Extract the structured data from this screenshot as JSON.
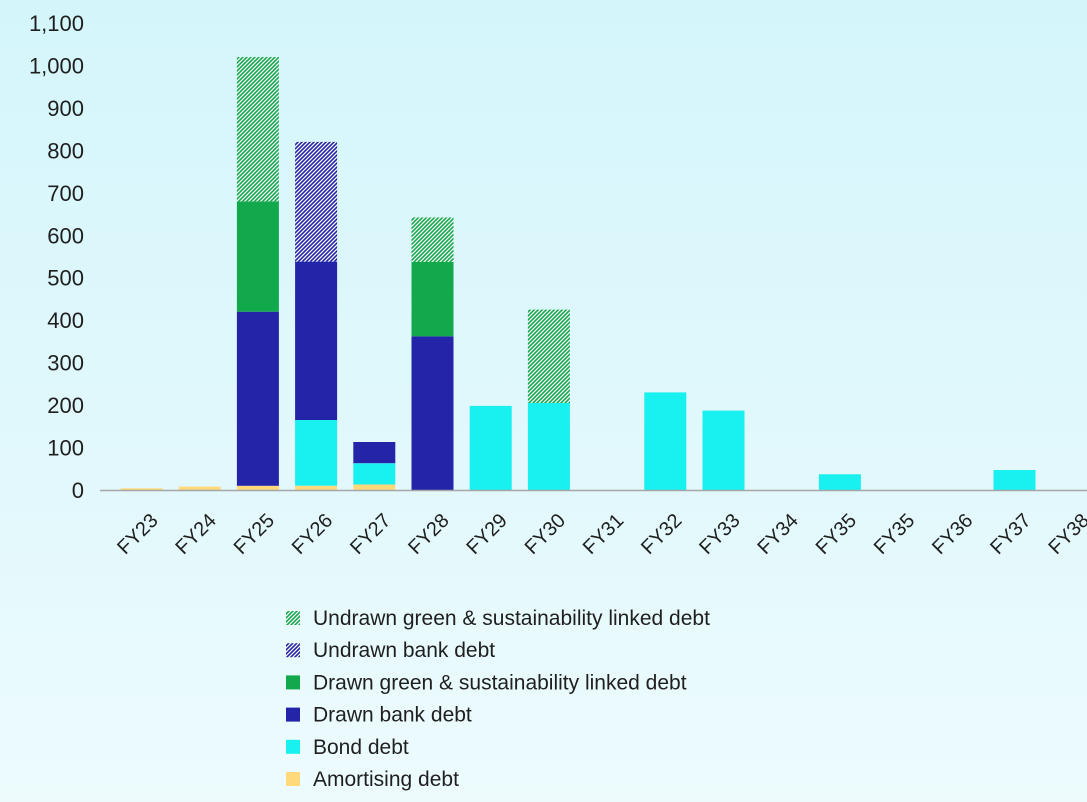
{
  "chart_data": {
    "type": "bar",
    "stacked": true,
    "categories": [
      "FY23",
      "FY24",
      "FY25",
      "FY26",
      "FY27",
      "FY28",
      "FY29",
      "FY30",
      "FY31",
      "FY32",
      "FY33",
      "FY34",
      "FY35",
      "FY35",
      "FY36",
      "FY37",
      "FY38"
    ],
    "series": [
      {
        "name": "Amortising debt",
        "color": "#ffd97a",
        "pattern": "solid",
        "values": [
          4,
          8,
          10,
          10,
          13,
          0,
          0,
          0,
          0,
          0,
          0,
          0,
          0,
          0,
          0,
          0,
          0
        ]
      },
      {
        "name": "Bond debt",
        "color": "#19f0f0",
        "pattern": "solid",
        "values": [
          0,
          0,
          0,
          155,
          50,
          0,
          198,
          205,
          0,
          230,
          187,
          0,
          37,
          0,
          0,
          47,
          0
        ]
      },
      {
        "name": "Drawn bank debt",
        "color": "#2424a8",
        "pattern": "solid",
        "values": [
          0,
          0,
          410,
          373,
          50,
          362,
          0,
          0,
          0,
          0,
          0,
          0,
          0,
          0,
          0,
          0,
          0
        ]
      },
      {
        "name": "Drawn green & sustainability linked  debt",
        "color": "#12a84c",
        "pattern": "solid",
        "values": [
          0,
          0,
          260,
          0,
          0,
          175,
          0,
          0,
          0,
          0,
          0,
          0,
          0,
          0,
          0,
          0,
          0
        ]
      },
      {
        "name": "Undrawn bank debt",
        "color": "#2424a8",
        "pattern": "hatch",
        "values": [
          0,
          0,
          0,
          282,
          0,
          0,
          0,
          0,
          0,
          0,
          0,
          0,
          0,
          0,
          0,
          0,
          0
        ]
      },
      {
        "name": "Undrawn green & sustainability linked debt",
        "color": "#12a84c",
        "pattern": "hatch",
        "values": [
          0,
          0,
          340,
          0,
          0,
          105,
          0,
          220,
          0,
          0,
          0,
          0,
          0,
          0,
          0,
          0,
          0
        ]
      }
    ],
    "legend_order": [
      5,
      4,
      3,
      2,
      1,
      0
    ],
    "ylim": [
      0,
      1100
    ],
    "yticks": [
      0,
      100,
      200,
      300,
      400,
      500,
      600,
      700,
      800,
      900,
      1000,
      1100
    ],
    "ytick_labels": [
      "0",
      "100",
      "200",
      "300",
      "400",
      "500",
      "600",
      "700",
      "800",
      "900",
      "1,000",
      "1,100"
    ],
    "xlabel": "",
    "ylabel": "",
    "grid": false,
    "legend_position": "bottom"
  }
}
